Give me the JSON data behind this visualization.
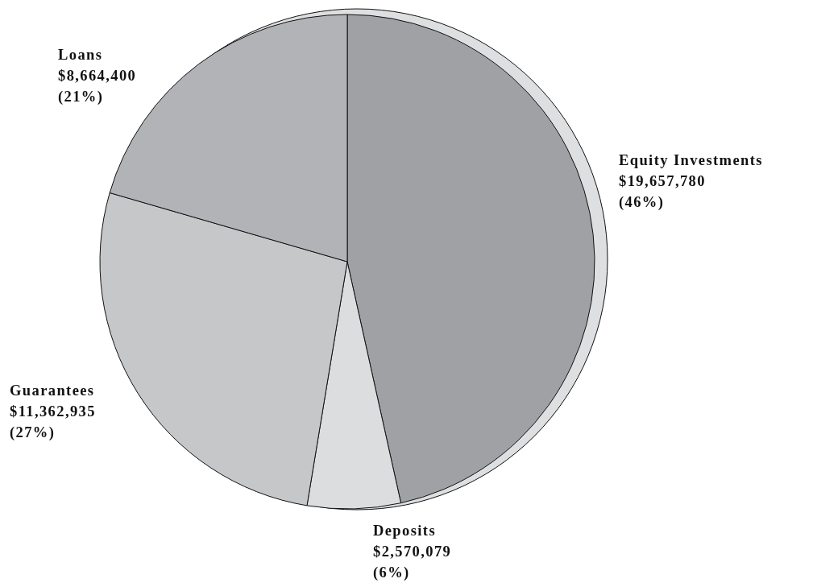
{
  "chart_data": {
    "type": "pie",
    "categories": [
      "Equity Investments",
      "Deposits",
      "Guarantees",
      "Loans"
    ],
    "values": [
      19657780,
      2570079,
      11362935,
      8664400
    ],
    "value_labels": [
      "$19,657,780\n(46%)",
      "$2,570,079\n(6%)",
      "$11,362,935\n(27%)",
      "$8,664,400\n(21%)"
    ],
    "colors": [
      "#a0a1a5",
      "#dcdddf",
      "#c6c7c9",
      "#b2b3b7"
    ]
  }
}
